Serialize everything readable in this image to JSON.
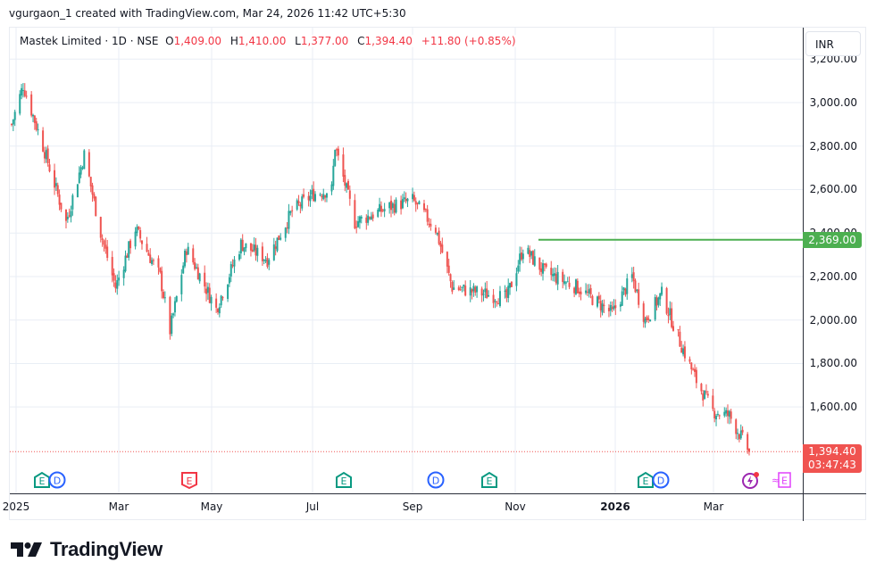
{
  "caption": "vgurgaon_1 created with TradingView.com, Mar 24, 2026 11:42 UTC+5:30",
  "legend": {
    "symbol": "Mastek Limited · 1D · NSE",
    "open_label": "O",
    "open": "1,409.00",
    "high_label": "H",
    "high": "1,410.00",
    "low_label": "L",
    "low": "1,377.00",
    "close_label": "C",
    "close": "1,394.40",
    "change": "+11.80 (+0.85%)"
  },
  "currency_button": "INR",
  "price_labels": {
    "horizontal_line": "2,369.00",
    "last_price": "1,394.40",
    "countdown": "03:47:43"
  },
  "colors": {
    "up": "#26a69a",
    "down": "#ef5350",
    "hline": "#4caf50",
    "last_price": "#f05350",
    "grid": "#e9eef5",
    "earnings_green": "#089981",
    "earnings_red": "#f23645",
    "dividend": "#2962ff",
    "split": "#9c27b0",
    "earnings_future": "#e040fb"
  },
  "events": [
    {
      "type": "E",
      "color": "green",
      "x": 46
    },
    {
      "type": "D",
      "color": "blue",
      "x": 63
    },
    {
      "type": "E",
      "color": "red",
      "x": 211
    },
    {
      "type": "E",
      "color": "green",
      "x": 384
    },
    {
      "type": "D",
      "color": "blue",
      "x": 487
    },
    {
      "type": "E",
      "color": "green",
      "x": 547
    },
    {
      "type": "E",
      "color": "green",
      "x": 722
    },
    {
      "type": "D",
      "color": "blue",
      "x": 739
    },
    {
      "type": "flash",
      "color": "purple",
      "x": 839
    },
    {
      "type": "E-future",
      "color": "magenta",
      "x": 872
    }
  ],
  "footer": {
    "logo_text": "TradingView"
  },
  "chart_data": {
    "type": "candlestick",
    "title": "Mastek Limited · 1D · NSE",
    "ylabel": "INR",
    "x_tick_labels": [
      "2025",
      "Mar",
      "May",
      "Jul",
      "Sep",
      "Nov",
      "2026",
      "Mar"
    ],
    "x_tick_positions": [
      17,
      132,
      236,
      349,
      461,
      576,
      688,
      798
    ],
    "y_tick_labels": [
      "3,200.00",
      "3,000.00",
      "2,800.00",
      "2,600.00",
      "2,400.00",
      "2,200.00",
      "2,000.00",
      "1,800.00",
      "1,600.00"
    ],
    "y_tick_values": [
      3200,
      3000,
      2800,
      2600,
      2400,
      2200,
      2000,
      1800,
      1600
    ],
    "ylim": [
      1340,
      3240
    ],
    "horizontal_line": 2369,
    "last": {
      "open": 1409.0,
      "high": 1410.0,
      "low": 1377.0,
      "close": 1394.4,
      "change": 11.8,
      "change_pct": 0.85
    },
    "approx_close_path": [
      {
        "date": "2025-01-01",
        "close": 2900
      },
      {
        "date": "2025-01-08",
        "close": 3080
      },
      {
        "date": "2025-01-20",
        "close": 2800
      },
      {
        "date": "2025-02-03",
        "close": 2450
      },
      {
        "date": "2025-02-14",
        "close": 2760
      },
      {
        "date": "2025-02-24",
        "close": 2400
      },
      {
        "date": "2025-03-05",
        "close": 2150
      },
      {
        "date": "2025-03-17",
        "close": 2420
      },
      {
        "date": "2025-04-01",
        "close": 2200
      },
      {
        "date": "2025-04-07",
        "close": 1950
      },
      {
        "date": "2025-04-17",
        "close": 2330
      },
      {
        "date": "2025-05-05",
        "close": 2050
      },
      {
        "date": "2025-05-20",
        "close": 2350
      },
      {
        "date": "2025-06-05",
        "close": 2280
      },
      {
        "date": "2025-06-20",
        "close": 2500
      },
      {
        "date": "2025-07-03",
        "close": 2580
      },
      {
        "date": "2025-07-14",
        "close": 2600
      },
      {
        "date": "2025-07-16",
        "close": 2800
      },
      {
        "date": "2025-07-28",
        "close": 2450
      },
      {
        "date": "2025-08-18",
        "close": 2520
      },
      {
        "date": "2025-09-01",
        "close": 2550
      },
      {
        "date": "2025-09-15",
        "close": 2420
      },
      {
        "date": "2025-09-25",
        "close": 2150
      },
      {
        "date": "2025-10-15",
        "close": 2120
      },
      {
        "date": "2025-10-28",
        "close": 2100
      },
      {
        "date": "2025-11-07",
        "close": 2330
      },
      {
        "date": "2025-11-20",
        "close": 2220
      },
      {
        "date": "2025-12-10",
        "close": 2150
      },
      {
        "date": "2025-12-31",
        "close": 2030
      },
      {
        "date": "2026-01-12",
        "close": 2200
      },
      {
        "date": "2026-01-20",
        "close": 2000
      },
      {
        "date": "2026-01-30",
        "close": 2120
      },
      {
        "date": "2026-02-10",
        "close": 1900
      },
      {
        "date": "2026-02-20",
        "close": 1720
      },
      {
        "date": "2026-03-02",
        "close": 1580
      },
      {
        "date": "2026-03-12",
        "close": 1560
      },
      {
        "date": "2026-03-24",
        "close": 1394.4
      }
    ]
  }
}
